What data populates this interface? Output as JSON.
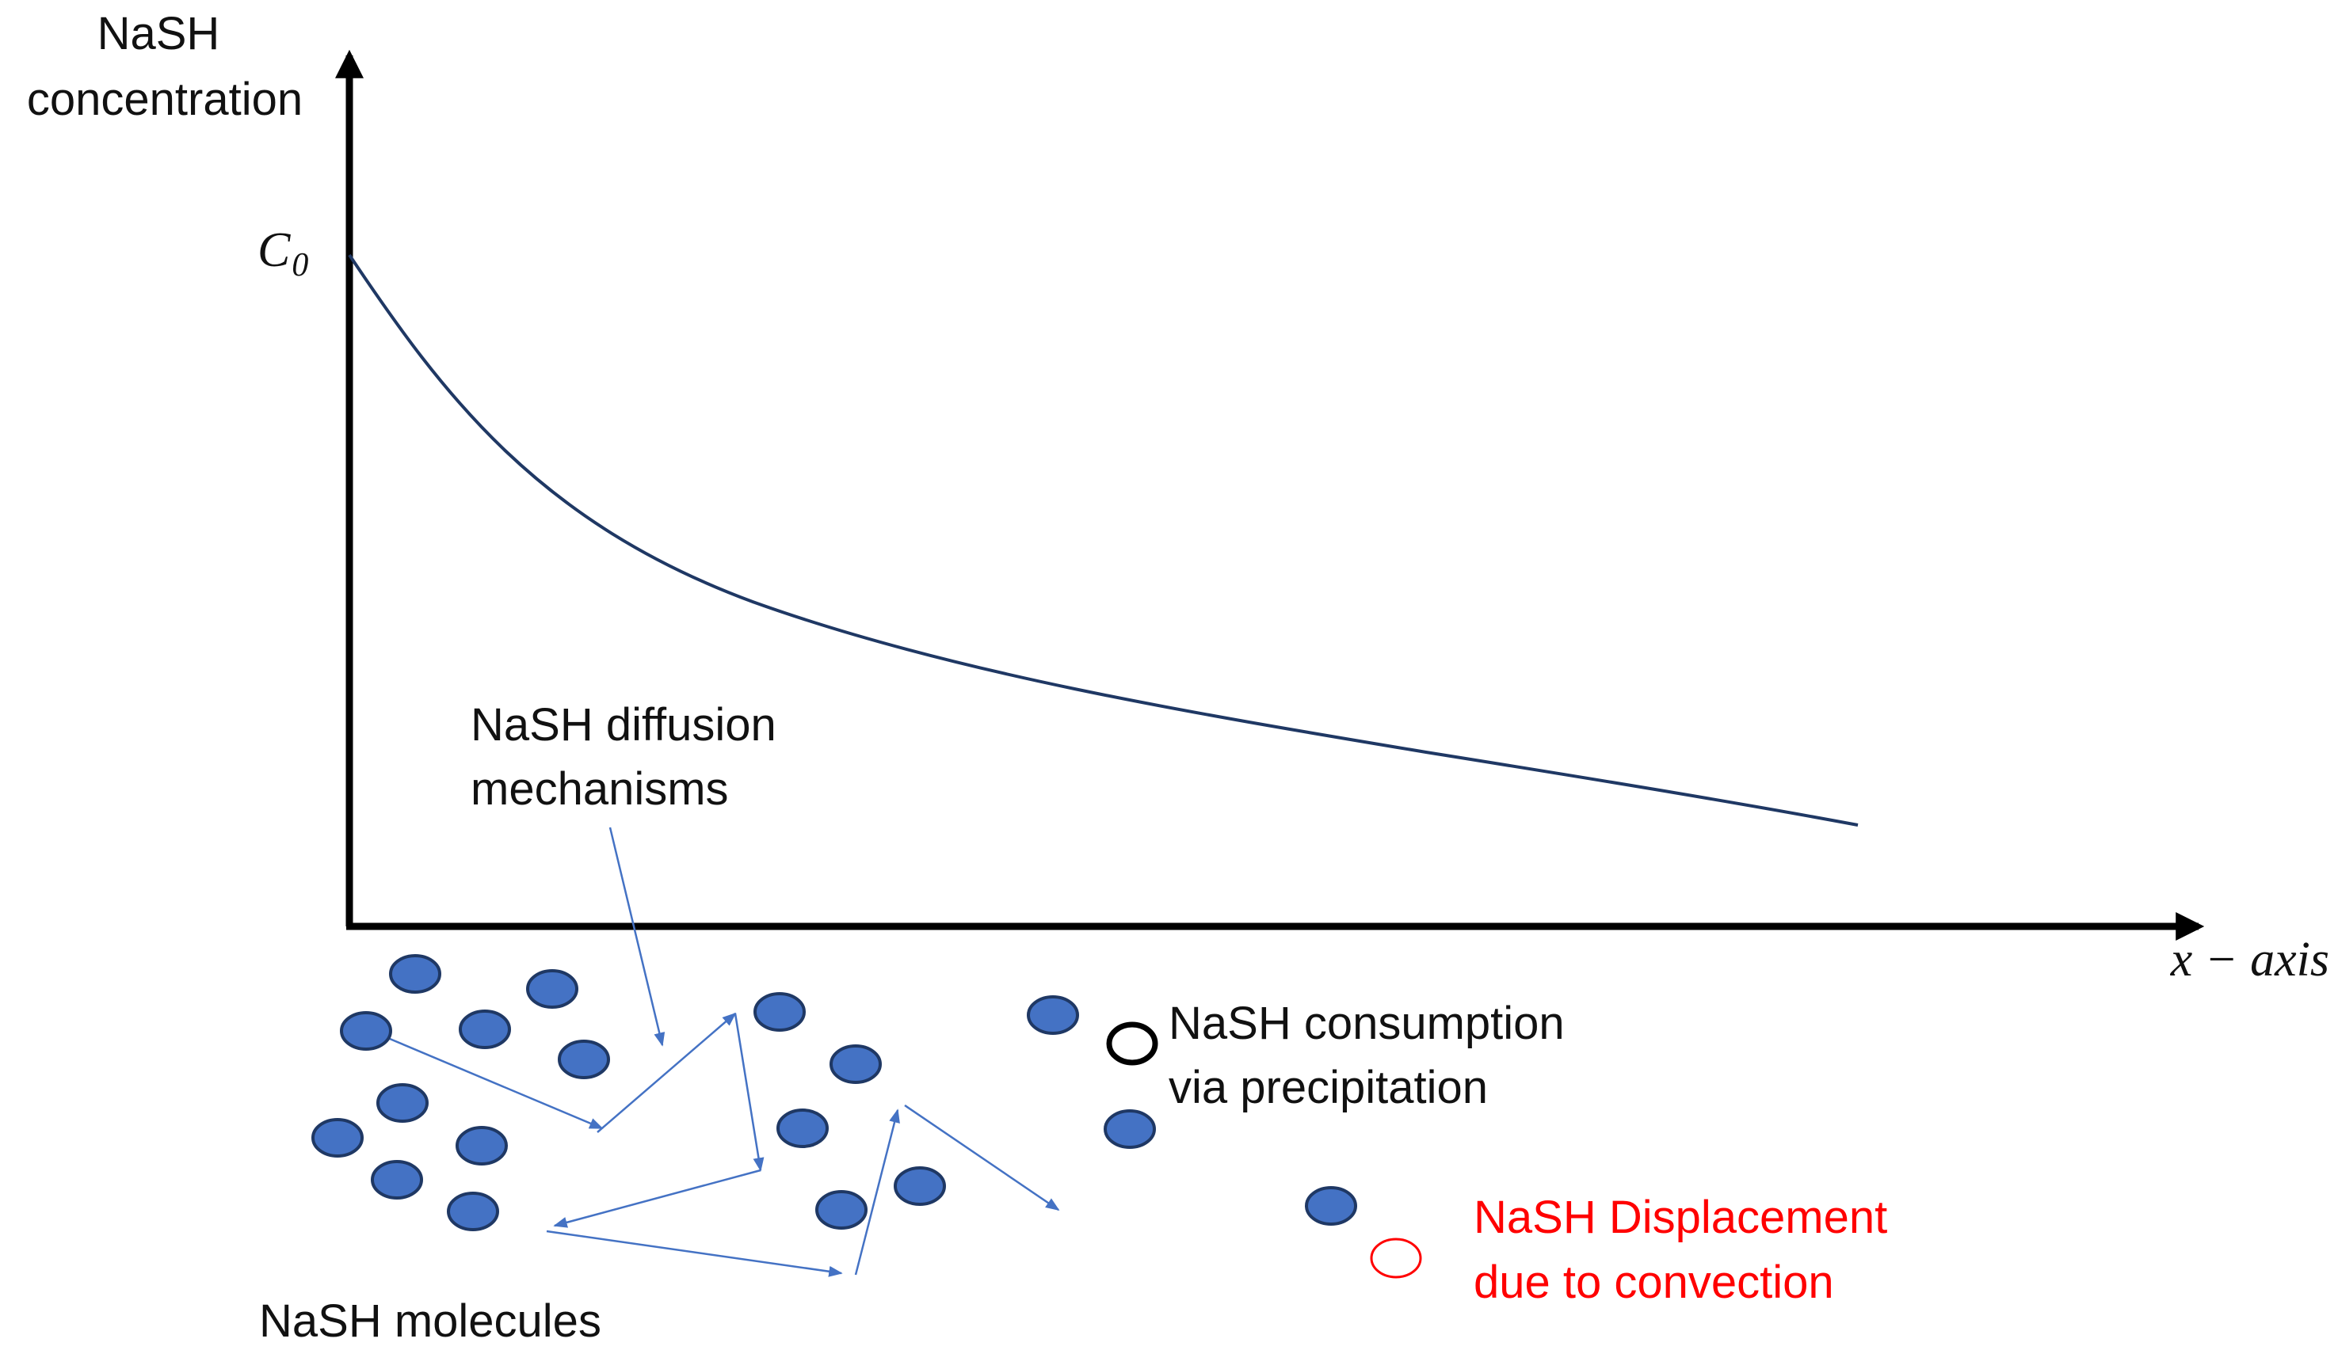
{
  "y_axis_label": [
    "NaSH",
    "concentration"
  ],
  "c0_label": "C",
  "c0_subscript": "0",
  "x_axis_label": "x − axis",
  "diffusion_label": [
    "NaSH diffusion",
    "mechanisms"
  ],
  "consumption_label": [
    "NaSH consumption",
    "via precipitation"
  ],
  "displacement_label": [
    "NaSH Displacement",
    "due to convection"
  ],
  "molecules_label": "NaSH molecules",
  "colors": {
    "curve": "#1f3864",
    "axis": "#000000",
    "molecule_fill": "#4472c4",
    "molecule_stroke": "#1f3864",
    "arrow": "#4472c4",
    "consumption_ring": "#000000",
    "displacement_ring": "#ff0000",
    "displacement_text": "#ff0000"
  }
}
